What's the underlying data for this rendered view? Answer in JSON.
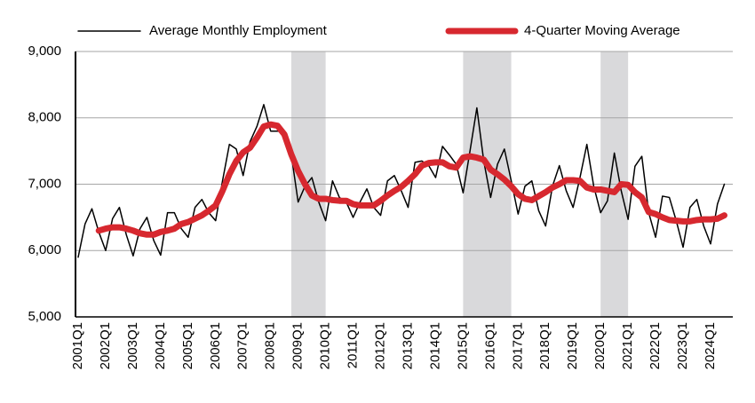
{
  "chart_data": {
    "type": "line",
    "categories": [
      "2001Q1",
      null,
      null,
      null,
      "2002Q1",
      null,
      null,
      null,
      "2003Q1",
      null,
      null,
      null,
      "2004Q1",
      null,
      null,
      null,
      "2005Q1",
      null,
      null,
      null,
      "2006Q1",
      null,
      null,
      null,
      "2007Q1",
      null,
      null,
      null,
      "2008Q1",
      null,
      null,
      null,
      "2009Q1",
      null,
      null,
      null,
      "2010Q1",
      null,
      null,
      null,
      "2011Q1",
      null,
      null,
      null,
      "2012Q1",
      null,
      null,
      null,
      "2013Q1",
      null,
      null,
      null,
      "2014Q1",
      null,
      null,
      null,
      "2015Q1",
      null,
      null,
      null,
      "2016Q1",
      null,
      null,
      null,
      "2017Q1",
      null,
      null,
      null,
      "2018Q1",
      null,
      null,
      null,
      "2019Q1",
      null,
      null,
      null,
      "2020Q1",
      null,
      null,
      null,
      "2021Q1",
      null,
      null,
      null,
      "2022Q1",
      null,
      null,
      null,
      "2023Q1",
      null,
      null,
      null,
      "2024Q1",
      null,
      null
    ],
    "series": [
      {
        "name": "Average Monthly Employment",
        "color": "#000000",
        "width": 1.5,
        "values": [
          5900,
          6400,
          6630,
          6280,
          6000,
          6480,
          6650,
          6240,
          5920,
          6330,
          6500,
          6150,
          5930,
          6570,
          6570,
          6330,
          6200,
          6650,
          6770,
          6570,
          6450,
          7050,
          7600,
          7530,
          7130,
          7640,
          7870,
          8200,
          7800,
          7800,
          7780,
          7450,
          6730,
          6970,
          7100,
          6730,
          6450,
          7050,
          6800,
          6730,
          6500,
          6730,
          6930,
          6650,
          6530,
          7050,
          7130,
          6900,
          6650,
          7330,
          7350,
          7280,
          7100,
          7570,
          7440,
          7300,
          6870,
          7500,
          8150,
          7350,
          6800,
          7300,
          7530,
          7050,
          6550,
          6970,
          7050,
          6600,
          6370,
          6970,
          7280,
          6900,
          6650,
          7100,
          7600,
          6970,
          6570,
          6750,
          7470,
          6900,
          6470,
          7270,
          7420,
          6570,
          6200,
          6820,
          6800,
          6450,
          6050,
          6650,
          6770,
          6370,
          6100,
          6700,
          7000
        ]
      },
      {
        "name": "4-Quarter Moving Average",
        "color": "#d7282f",
        "width": 7,
        "values": [
          null,
          null,
          null,
          6300,
          6330,
          6350,
          6350,
          6330,
          6300,
          6260,
          6240,
          6240,
          6280,
          6300,
          6330,
          6400,
          6430,
          6480,
          6530,
          6600,
          6680,
          6900,
          7150,
          7350,
          7480,
          7550,
          7700,
          7870,
          7900,
          7880,
          7750,
          7450,
          7200,
          7000,
          6830,
          6780,
          6780,
          6760,
          6750,
          6750,
          6700,
          6680,
          6680,
          6680,
          6750,
          6830,
          6900,
          6960,
          7050,
          7150,
          7280,
          7320,
          7330,
          7330,
          7270,
          7250,
          7400,
          7420,
          7400,
          7370,
          7220,
          7150,
          7070,
          6970,
          6850,
          6780,
          6760,
          6820,
          6880,
          6950,
          7000,
          7060,
          7060,
          7050,
          6950,
          6920,
          6920,
          6900,
          6880,
          7000,
          6990,
          6880,
          6800,
          6580,
          6550,
          6500,
          6460,
          6450,
          6440,
          6440,
          6460,
          6470,
          6470,
          6480,
          6530
        ]
      }
    ],
    "bands": [
      [
        31,
        36
      ],
      [
        56,
        63
      ],
      [
        76,
        80
      ]
    ],
    "ylim": [
      5000,
      9000
    ],
    "yticks": [
      {
        "value": 5000,
        "label": "5,000"
      },
      {
        "value": 6000,
        "label": "6,000"
      },
      {
        "value": 7000,
        "label": "7,000"
      },
      {
        "value": 8000,
        "label": "8,000"
      },
      {
        "value": 9000,
        "label": "9,000"
      }
    ],
    "grid": true
  }
}
